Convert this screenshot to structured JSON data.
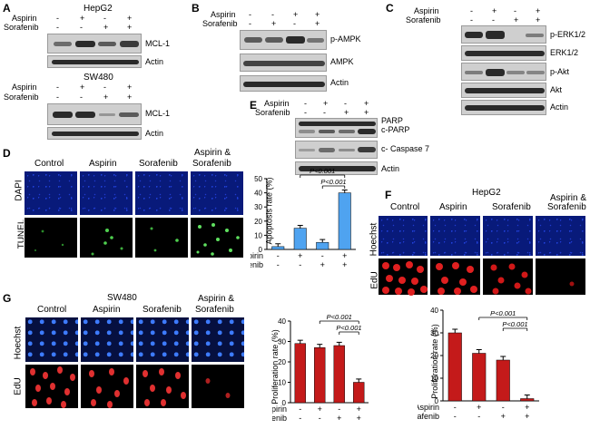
{
  "panels": {
    "A": {
      "label": "A",
      "hepg2": {
        "cell_line": "HepG2",
        "row_labels": [
          "Aspirin",
          "Sorafenib"
        ],
        "aspirin": [
          "-",
          "+",
          "-",
          "+"
        ],
        "sorafenib": [
          "-",
          "-",
          "+",
          "+"
        ],
        "bands": [
          "MCL-1",
          "Actin"
        ]
      },
      "sw480": {
        "cell_line": "SW480",
        "row_labels": [
          "Aspirin",
          "Sorafenib"
        ],
        "aspirin": [
          "-",
          "+",
          "-",
          "+"
        ],
        "sorafenib": [
          "-",
          "-",
          "+",
          "+"
        ],
        "bands": [
          "MCL-1",
          "Actin"
        ]
      }
    },
    "B": {
      "label": "B",
      "row_labels": [
        "Aspirin",
        "Sorafenib"
      ],
      "aspirin": [
        "-",
        "-",
        "+",
        "+"
      ],
      "sorafenib": [
        "-",
        "+",
        "-",
        "+"
      ],
      "bands": [
        "p-AMPK",
        "AMPK",
        "Actin"
      ]
    },
    "C": {
      "label": "C",
      "row_labels": [
        "Aspirin",
        "Sorafenib"
      ],
      "aspirin": [
        "-",
        "+",
        "-",
        "+"
      ],
      "sorafenib": [
        "-",
        "-",
        "+",
        "+"
      ],
      "bands": [
        "p-ERK1/2",
        "ERK1/2",
        "p-Akt",
        "Akt",
        "Actin"
      ]
    },
    "E": {
      "label": "E",
      "row_labels": [
        "Aspirin",
        "Sorafenib"
      ],
      "aspirin": [
        "-",
        "+",
        "-",
        "+"
      ],
      "sorafenib": [
        "-",
        "-",
        "+",
        "+"
      ],
      "bands": [
        "PARP",
        "c-PARP",
        "c- Caspase 7",
        "Actin"
      ]
    },
    "D": {
      "label": "D",
      "columns": [
        "Control",
        "Aspirin",
        "Sorafenib",
        "Aspirin &",
        "Sorafenib"
      ],
      "rows": [
        "DAPI",
        "TUNEL"
      ]
    },
    "F": {
      "label": "F",
      "cell_line": "HepG2",
      "columns": [
        "Control",
        "Aspirin",
        "Sorafenib",
        "Aspirin &",
        "Sorafenib"
      ],
      "rows": [
        "Hoechst",
        "EdU"
      ]
    },
    "G": {
      "label": "G",
      "cell_line": "SW480",
      "columns": [
        "Control",
        "Aspirin",
        "Sorafenib",
        "Aspirin &",
        "Sorafenib"
      ],
      "rows": [
        "Hoechst",
        "EdU"
      ]
    }
  },
  "chart_data": [
    {
      "id": "D-apoptosis",
      "type": "bar",
      "ylabel": "Apoptosis rate (%)",
      "ylim": [
        0,
        50
      ],
      "yticks": [
        "0",
        "10",
        "20",
        "30",
        "40",
        "50"
      ],
      "values": [
        2,
        15,
        5,
        40
      ],
      "color": "#4fa3f0",
      "row_labels": [
        "Aspirin",
        "Sorafenib"
      ],
      "aspirin": [
        "-",
        "+",
        "-",
        "+"
      ],
      "sorafenib": [
        "-",
        "-",
        "+",
        "+"
      ],
      "annotations": [
        "P<0.001",
        "P<0.001"
      ]
    },
    {
      "id": "F-proliferation",
      "type": "bar",
      "ylabel": "Proliferation rate (%)",
      "ylim": [
        0,
        40
      ],
      "yticks": [
        "0",
        "10",
        "20",
        "30",
        "40"
      ],
      "values": [
        30,
        21,
        18,
        1
      ],
      "color": "#c41a1a",
      "row_labels": [
        "Aspirin",
        "Sorafenib"
      ],
      "aspirin": [
        "-",
        "+",
        "-",
        "+"
      ],
      "sorafenib": [
        "-",
        "-",
        "+",
        "+"
      ],
      "annotations": [
        "P<0.001",
        "P<0.001"
      ]
    },
    {
      "id": "G-proliferation",
      "type": "bar",
      "ylabel": "Proliferation rate (%)",
      "ylim": [
        0,
        40
      ],
      "yticks": [
        "0",
        "10",
        "20",
        "30",
        "40"
      ],
      "values": [
        29,
        27,
        28,
        10
      ],
      "color": "#c41a1a",
      "row_labels": [
        "Aspirin",
        "Sorafenib"
      ],
      "aspirin": [
        "-",
        "+",
        "-",
        "+"
      ],
      "sorafenib": [
        "-",
        "-",
        "+",
        "+"
      ],
      "annotations": [
        "P<0.001",
        "P<0.001"
      ]
    }
  ]
}
